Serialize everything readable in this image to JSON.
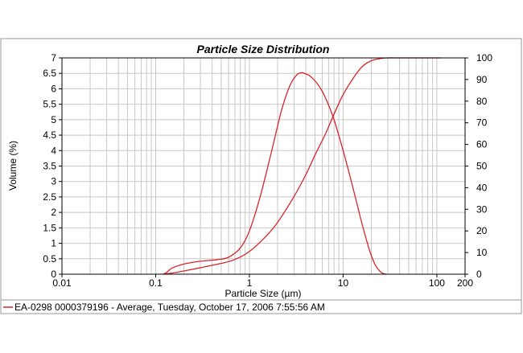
{
  "chart_data": {
    "type": "line",
    "title": "Particle Size Distribution",
    "xlabel": "Particle Size (µm)",
    "ylabel": "Volume (%)",
    "x_scale": "log",
    "xlim": [
      0.01,
      200
    ],
    "x_ticks": [
      {
        "value": 0.01,
        "label": "0.01"
      },
      {
        "value": 0.1,
        "label": "0.1"
      },
      {
        "value": 1,
        "label": "1"
      },
      {
        "value": 10,
        "label": "10"
      },
      {
        "value": 100,
        "label": "100"
      },
      {
        "value": 200,
        "label": "200"
      }
    ],
    "ylim": [
      0,
      7
    ],
    "y_ticks": [
      "0",
      "0.5",
      "1",
      "1.5",
      "2",
      "2.5",
      "3",
      "3.5",
      "4",
      "4.5",
      "5",
      "5.5",
      "6",
      "6.5",
      "7"
    ],
    "y2lim": [
      0,
      100
    ],
    "y2_ticks": [
      "0",
      "10",
      "20",
      "30",
      "40",
      "50",
      "60",
      "70",
      "80",
      "90",
      "100"
    ],
    "grid": true,
    "legend_position": "bottom",
    "colors": {
      "series": "#d9252b",
      "grid": "#c8c8c8",
      "axis": "#000000"
    },
    "series": [
      {
        "name": "EA-0298 0000379196 - Average, Tuesday, October 17, 2006 7:55:56 AM",
        "axis": "left",
        "x": [
          0.12,
          0.13,
          0.15,
          0.2,
          0.3,
          0.45,
          0.6,
          0.8,
          1.0,
          1.3,
          1.7,
          2.2,
          2.7,
          3.2,
          3.6,
          4.0,
          4.5,
          5.5,
          6.5,
          8,
          10,
          12,
          14,
          16,
          19,
          22,
          25,
          27,
          29
        ],
        "values": [
          0,
          0.05,
          0.2,
          0.33,
          0.42,
          0.47,
          0.55,
          0.85,
          1.4,
          2.5,
          3.9,
          5.3,
          6.1,
          6.45,
          6.52,
          6.48,
          6.4,
          6.1,
          5.7,
          5.0,
          4.0,
          3.1,
          2.3,
          1.6,
          0.8,
          0.3,
          0.08,
          0.02,
          0
        ]
      },
      {
        "name": "",
        "axis": "right",
        "x": [
          0.12,
          0.15,
          0.2,
          0.3,
          0.5,
          0.7,
          1.0,
          1.5,
          2.0,
          3.0,
          4.0,
          5.0,
          6.5,
          8,
          10,
          13,
          16,
          20,
          25,
          30,
          40,
          60,
          100,
          110
        ],
        "values": [
          0,
          0.5,
          1.5,
          3,
          5,
          6.8,
          10.5,
          17.5,
          24,
          36,
          46,
          55,
          65,
          74,
          83,
          91,
          96,
          98.7,
          99.7,
          100,
          100,
          100,
          100,
          100
        ]
      }
    ]
  }
}
